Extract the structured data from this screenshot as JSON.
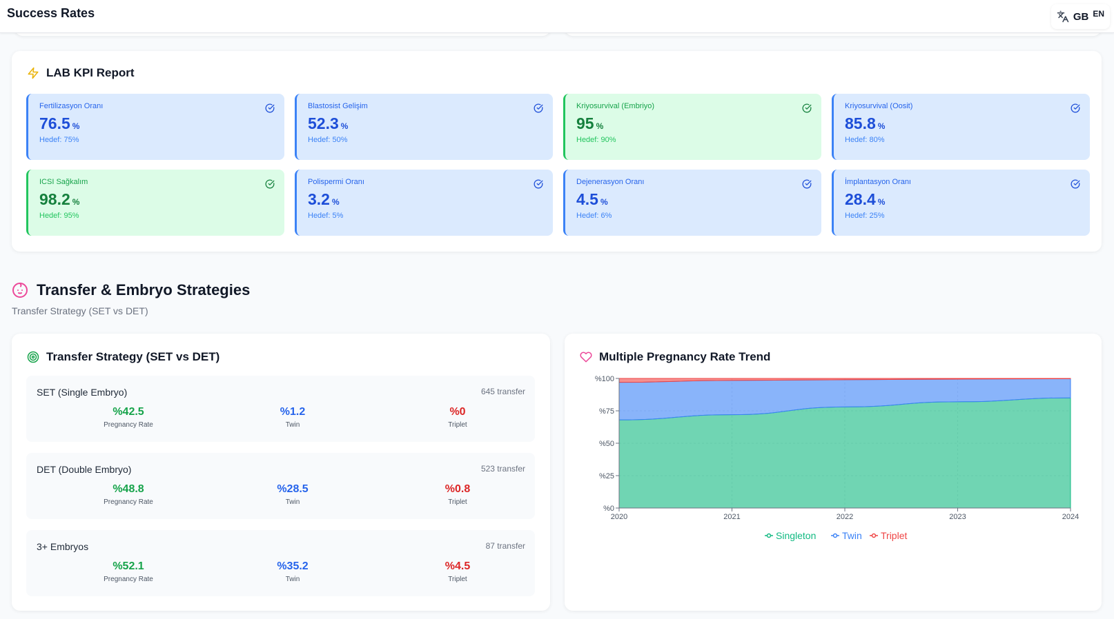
{
  "header": {
    "title": "Success Rates",
    "lang_flag": "GB",
    "lang_code": "EN"
  },
  "lab_kpi": {
    "title": "LAB KPI Report",
    "cards": [
      {
        "label": "Fertilizasyon Oranı",
        "value": "76.5",
        "unit": "%",
        "target": "Hedef: 75%",
        "status": "blue"
      },
      {
        "label": "Blastosist Gelişim",
        "value": "52.3",
        "unit": "%",
        "target": "Hedef: 50%",
        "status": "blue"
      },
      {
        "label": "Kriyosurvival (Embriyo)",
        "value": "95",
        "unit": "%",
        "target": "Hedef: 90%",
        "status": "green"
      },
      {
        "label": "Kriyosurvival (Oosit)",
        "value": "85.8",
        "unit": "%",
        "target": "Hedef: 80%",
        "status": "blue"
      },
      {
        "label": "ICSI Sağkalım",
        "value": "98.2",
        "unit": "%",
        "target": "Hedef: 95%",
        "status": "green"
      },
      {
        "label": "Polispermi Oranı",
        "value": "3.2",
        "unit": "%",
        "target": "Hedef: 5%",
        "status": "blue"
      },
      {
        "label": "Dejenerasyon Oranı",
        "value": "4.5",
        "unit": "%",
        "target": "Hedef: 6%",
        "status": "blue"
      },
      {
        "label": "İmplantasyon Oranı",
        "value": "28.4",
        "unit": "%",
        "target": "Hedef: 25%",
        "status": "blue"
      }
    ]
  },
  "section": {
    "title": "Transfer & Embryo Strategies",
    "subtitle": "Transfer Strategy (SET vs DET)"
  },
  "transfer_strategy": {
    "title": "Transfer Strategy (SET vs DET)",
    "rows": [
      {
        "name": "SET (Single Embryo)",
        "count": "645 transfer",
        "pregnancy": "%42.5",
        "pregnancy_label": "Pregnancy Rate",
        "twin": "%1.2",
        "twin_label": "Twin",
        "triplet": "%0",
        "triplet_label": "Triplet"
      },
      {
        "name": "DET (Double Embryo)",
        "count": "523 transfer",
        "pregnancy": "%48.8",
        "pregnancy_label": "Pregnancy Rate",
        "twin": "%28.5",
        "twin_label": "Twin",
        "triplet": "%0.8",
        "triplet_label": "Triplet"
      },
      {
        "name": "3+ Embryos",
        "count": "87 transfer",
        "pregnancy": "%52.1",
        "pregnancy_label": "Pregnancy Rate",
        "twin": "%35.2",
        "twin_label": "Twin",
        "triplet": "%4.5",
        "triplet_label": "Triplet"
      }
    ]
  },
  "pregnancy_trend": {
    "title": "Multiple Pregnancy Rate Trend"
  },
  "chart_data": {
    "type": "area",
    "stacked": true,
    "x": [
      "2020",
      "2021",
      "2022",
      "2023",
      "2024"
    ],
    "series": [
      {
        "name": "Singleton",
        "values": [
          68,
          72,
          78,
          82,
          85
        ],
        "color": "#10b981"
      },
      {
        "name": "Twin",
        "values": [
          29,
          26.5,
          21,
          17.5,
          14.8
        ],
        "color": "#3b82f6"
      },
      {
        "name": "Triplet",
        "values": [
          3,
          1.5,
          1,
          0.5,
          0.2
        ],
        "color": "#ef4444"
      }
    ],
    "ylim": [
      0,
      100
    ],
    "yticks": [
      "%0",
      "%25",
      "%50",
      "%75",
      "%100"
    ],
    "ytick_values": [
      0,
      25,
      50,
      75,
      100
    ],
    "legend": "bottom",
    "title": "",
    "xlabel": "",
    "ylabel": ""
  },
  "colors": {
    "accent_blue": "#3b82f6",
    "accent_green": "#22c55e",
    "danger": "#dc2626",
    "pink": "#ec4899"
  }
}
